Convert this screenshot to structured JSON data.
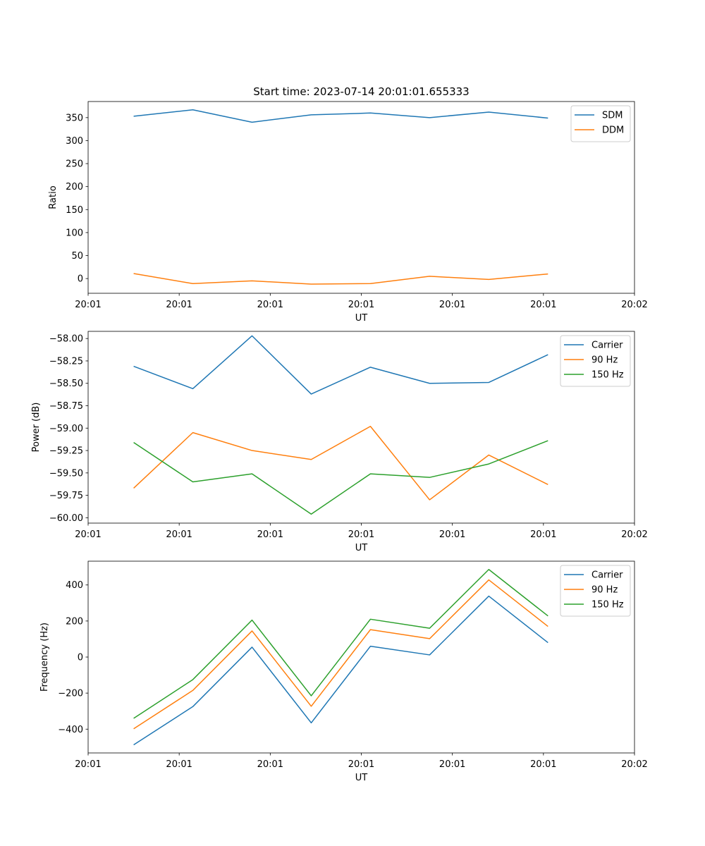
{
  "chart_data": [
    {
      "type": "line",
      "title": "Start time: 2023-07-14 20:01:01.655333",
      "xlabel": "UT",
      "ylabel": "Ratio",
      "x_ticks": [
        "20:01",
        "20:01",
        "20:01",
        "20:01",
        "20:01",
        "20:01",
        "20:02"
      ],
      "x": [
        0.5,
        1.15,
        1.8,
        2.45,
        3.1,
        3.75,
        4.4,
        5.05
      ],
      "xlim": [
        0,
        6
      ],
      "ylim": [
        -32,
        385
      ],
      "y_ticks": [
        0,
        50,
        100,
        150,
        200,
        250,
        300,
        350
      ],
      "legend_loc": "upper right",
      "series": [
        {
          "name": "SDM",
          "color": "#1f77b4",
          "values": [
            353,
            367,
            340,
            356,
            360,
            350,
            362,
            349
          ]
        },
        {
          "name": "DDM",
          "color": "#ff7f0e",
          "values": [
            11,
            -11,
            -5,
            -12,
            -11,
            5,
            -2,
            10
          ]
        }
      ]
    },
    {
      "type": "line",
      "title": "",
      "xlabel": "UT",
      "ylabel": "Power (dB)",
      "x_ticks": [
        "20:01",
        "20:01",
        "20:01",
        "20:01",
        "20:01",
        "20:01",
        "20:02"
      ],
      "x": [
        0.5,
        1.15,
        1.8,
        2.45,
        3.1,
        3.75,
        4.4,
        5.05
      ],
      "xlim": [
        0,
        6
      ],
      "ylim": [
        -60.06,
        -57.92
      ],
      "y_ticks": [
        -60.0,
        -59.75,
        -59.5,
        -59.25,
        -59.0,
        -58.75,
        -58.5,
        -58.25,
        -58.0
      ],
      "y_tick_labels": [
        "−60.00",
        "−59.75",
        "−59.50",
        "−59.25",
        "−59.00",
        "−58.75",
        "−58.50",
        "−58.25",
        "−58.00"
      ],
      "legend_loc": "upper right",
      "series": [
        {
          "name": "Carrier",
          "color": "#1f77b4",
          "values": [
            -58.31,
            -58.56,
            -57.97,
            -58.62,
            -58.32,
            -58.5,
            -58.49,
            -58.18
          ]
        },
        {
          "name": "90 Hz",
          "color": "#ff7f0e",
          "values": [
            -59.67,
            -59.05,
            -59.25,
            -59.35,
            -58.98,
            -59.8,
            -59.3,
            -59.63
          ]
        },
        {
          "name": "150 Hz",
          "color": "#2ca02c",
          "values": [
            -59.16,
            -59.6,
            -59.51,
            -59.96,
            -59.51,
            -59.55,
            -59.4,
            -59.14
          ]
        }
      ]
    },
    {
      "type": "line",
      "title": "",
      "xlabel": "UT",
      "ylabel": "Frequency (Hz)",
      "x_ticks": [
        "20:01",
        "20:01",
        "20:01",
        "20:01",
        "20:01",
        "20:01",
        "20:02"
      ],
      "x": [
        0.5,
        1.15,
        1.8,
        2.45,
        3.1,
        3.75,
        4.4,
        5.05
      ],
      "xlim": [
        0,
        6
      ],
      "ylim": [
        -532,
        532
      ],
      "y_ticks": [
        -400,
        -200,
        0,
        200,
        400
      ],
      "y_tick_labels": [
        "−400",
        "−200",
        "0",
        "200",
        "400"
      ],
      "legend_loc": "upper right",
      "series": [
        {
          "name": "Carrier",
          "color": "#1f77b4",
          "values": [
            -487,
            -275,
            55,
            -365,
            60,
            12,
            338,
            80
          ]
        },
        {
          "name": "90 Hz",
          "color": "#ff7f0e",
          "values": [
            -398,
            -185,
            145,
            -273,
            152,
            102,
            428,
            170
          ]
        },
        {
          "name": "150 Hz",
          "color": "#2ca02c",
          "values": [
            -340,
            -125,
            205,
            -215,
            210,
            160,
            486,
            228
          ]
        }
      ]
    }
  ]
}
